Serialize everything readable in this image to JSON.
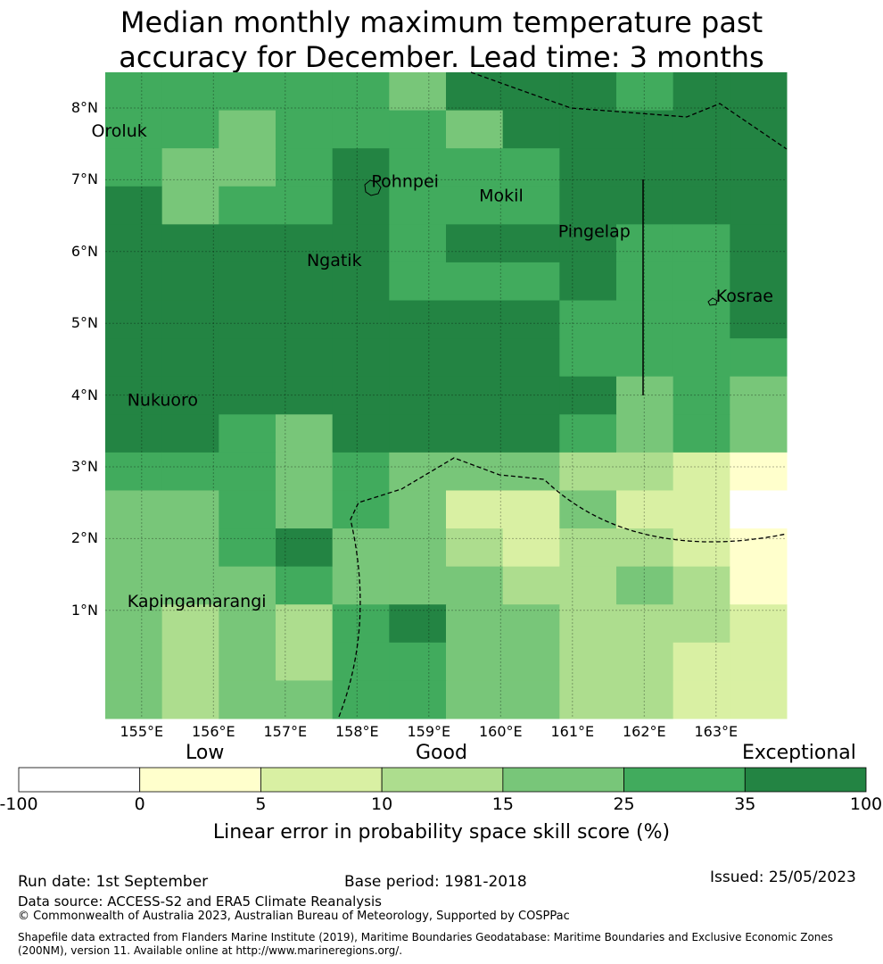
{
  "title": {
    "line1": "Median monthly maximum temperature past",
    "line2": "accuracy for December. Lead time: 3 months"
  },
  "map": {
    "lon_ticks": [
      "155°E",
      "156°E",
      "157°E",
      "158°E",
      "159°E",
      "160°E",
      "161°E",
      "162°E",
      "163°E"
    ],
    "lat_ticks": [
      "8°N",
      "7°N",
      "6°N",
      "5°N",
      "4°N",
      "3°N",
      "2°N",
      "1°N"
    ],
    "places": [
      {
        "name": "Oroluk",
        "lon": 154.3,
        "lat": 7.6
      },
      {
        "name": "Pohnpei",
        "lon": 158.2,
        "lat": 6.9
      },
      {
        "name": "Mokil",
        "lon": 159.7,
        "lat": 6.7
      },
      {
        "name": "Pingelap",
        "lon": 160.8,
        "lat": 6.2
      },
      {
        "name": "Ngatik",
        "lon": 157.3,
        "lat": 5.8
      },
      {
        "name": "Kosrae",
        "lon": 163.0,
        "lat": 5.3
      },
      {
        "name": "Nukuoro",
        "lon": 154.8,
        "lat": 3.85
      },
      {
        "name": "Kapingamarangi",
        "lon": 154.8,
        "lat": 1.05
      }
    ],
    "grid_colors": [
      "#ffffff",
      "#ffffcc",
      "#d9f0a3",
      "#addd8e",
      "#78c679",
      "#41ab5d",
      "#238443"
    ],
    "grid": [
      [
        5,
        5,
        5,
        5,
        5,
        4,
        6,
        6,
        6,
        5,
        6,
        6
      ],
      [
        5,
        5,
        4,
        5,
        5,
        5,
        4,
        6,
        6,
        6,
        6,
        6
      ],
      [
        5,
        4,
        4,
        5,
        6,
        5,
        5,
        5,
        6,
        6,
        6,
        6
      ],
      [
        6,
        4,
        5,
        5,
        6,
        5,
        5,
        5,
        6,
        6,
        6,
        6
      ],
      [
        6,
        6,
        6,
        6,
        6,
        5,
        6,
        6,
        6,
        5,
        5,
        6
      ],
      [
        6,
        6,
        6,
        6,
        6,
        5,
        5,
        5,
        6,
        5,
        5,
        6
      ],
      [
        6,
        6,
        6,
        6,
        6,
        6,
        6,
        6,
        5,
        5,
        5,
        6
      ],
      [
        6,
        6,
        6,
        6,
        6,
        6,
        6,
        6,
        5,
        5,
        5,
        5
      ],
      [
        6,
        6,
        6,
        6,
        6,
        6,
        6,
        6,
        6,
        4,
        5,
        4
      ],
      [
        6,
        6,
        5,
        4,
        6,
        6,
        6,
        6,
        5,
        4,
        5,
        4
      ],
      [
        5,
        5,
        5,
        4,
        5,
        4,
        4,
        4,
        3,
        3,
        2,
        1
      ],
      [
        4,
        4,
        5,
        4,
        5,
        4,
        2,
        2,
        4,
        2,
        2,
        0
      ],
      [
        4,
        4,
        5,
        6,
        4,
        4,
        3,
        2,
        3,
        3,
        2,
        1
      ],
      [
        4,
        4,
        4,
        5,
        4,
        4,
        4,
        3,
        3,
        4,
        3,
        1
      ],
      [
        4,
        3,
        4,
        3,
        5,
        6,
        4,
        4,
        3,
        3,
        3,
        2
      ],
      [
        4,
        3,
        4,
        3,
        5,
        5,
        4,
        4,
        3,
        3,
        2,
        2
      ],
      [
        4,
        3,
        4,
        4,
        5,
        5,
        4,
        4,
        3,
        3,
        2,
        2
      ]
    ]
  },
  "colorbar": {
    "categories": [
      "Low",
      "Good",
      "Exceptional"
    ],
    "ticks": [
      "-100",
      "0",
      "5",
      "10",
      "15",
      "25",
      "35",
      "100"
    ],
    "colors": [
      "#ffffff",
      "#ffffcc",
      "#d9f0a3",
      "#addd8e",
      "#78c679",
      "#41ab5d",
      "#238443"
    ],
    "label": "Linear error in probability space skill score (%)"
  },
  "footer": {
    "run_date": "Run date: 1st September",
    "base_period": "Base period: 1981-2018",
    "issued": "Issued: 25/05/2023",
    "data_source": "Data source: ACCESS-S2 and ERA5 Climate Reanalysis",
    "copyright": "© Commonwealth of Australia 2023, Australian Bureau of Meteorology, Supported by COSPPac",
    "shapefile_1": "Shapefile data extracted from Flanders Marine Institute (2019), Maritime Boundaries Geodatabase: Maritime Boundaries and Exclusive Economic Zones",
    "shapefile_2": "(200NM), version 11. Available online at http://www.marineregions.org/."
  }
}
